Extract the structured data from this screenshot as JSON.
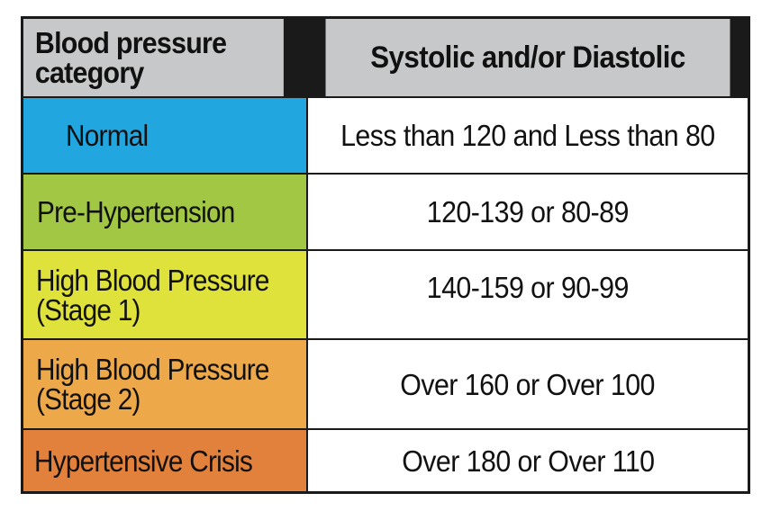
{
  "table": {
    "header": {
      "category": "Blood pressure\ncategory",
      "value": "Systolic and/or Diastolic"
    },
    "rows": [
      {
        "category": "Normal",
        "value": "Less than 120 and Less than 80",
        "color": "#22a6df"
      },
      {
        "category": "Pre-Hypertension",
        "value": "120-139 or 80-89",
        "color": "#a1c744"
      },
      {
        "category": "High Blood Pressure\n(Stage 1)",
        "value": "140-159 or 90-99",
        "color": "#dfe23b"
      },
      {
        "category": "High Blood Pressure\n(Stage 2)",
        "value": "Over 160 or Over 100",
        "color": "#eda84a"
      },
      {
        "category": "Hypertensive Crisis",
        "value": "Over 180 or Over 110",
        "color": "#e2813b"
      }
    ]
  }
}
